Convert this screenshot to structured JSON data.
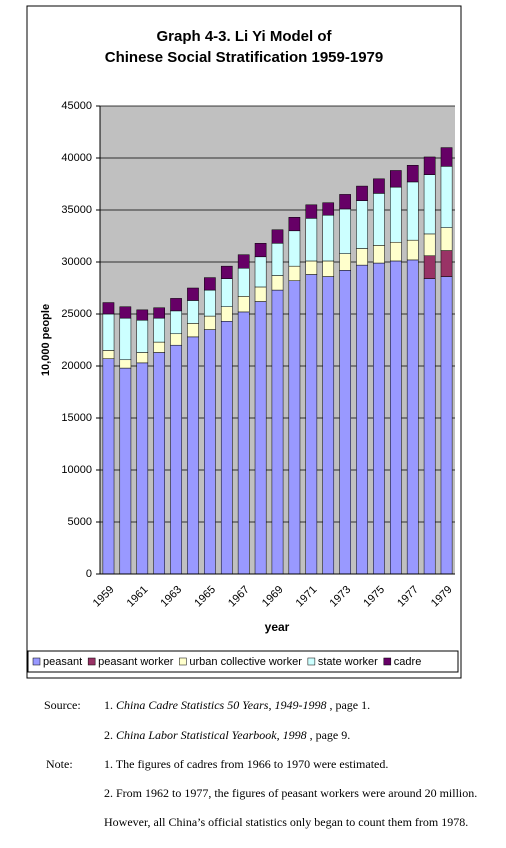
{
  "chart_data": {
    "type": "stacked_bar",
    "title": [
      "Graph 4-3. Li Yi Model of",
      "Chinese Social Stratification 1959-1979"
    ],
    "y_label": "10,000 people",
    "x_label": "year",
    "categories": [
      "1959",
      null,
      "1961",
      null,
      "1963",
      null,
      "1965",
      null,
      "1967",
      null,
      "1969",
      null,
      "1971",
      null,
      "1973",
      null,
      "1975",
      null,
      "1977",
      null,
      "1979"
    ],
    "ylim": [
      0,
      45000
    ],
    "yticks": [
      0,
      5000,
      10000,
      15000,
      20000,
      25000,
      30000,
      35000,
      40000,
      45000
    ],
    "grid": true,
    "legend": "bottom",
    "series": [
      {
        "name": "peasant",
        "color": "#9999ff",
        "values": [
          20700,
          19800,
          20300,
          21300,
          22000,
          22800,
          23500,
          24300,
          25200,
          26200,
          27300,
          28200,
          28800,
          28600,
          29200,
          29700,
          29900,
          30100,
          30200,
          28400,
          28600
        ]
      },
      {
        "name": "peasant worker",
        "color": "#993366",
        "values": [
          null,
          null,
          null,
          null,
          null,
          null,
          null,
          null,
          null,
          null,
          null,
          null,
          null,
          null,
          null,
          null,
          null,
          null,
          null,
          2200,
          2500
        ]
      },
      {
        "name": "urban collective worker",
        "color": "#ffffcc",
        "values": [
          800,
          800,
          1000,
          1000,
          1100,
          1300,
          1300,
          1400,
          1500,
          1400,
          1400,
          1400,
          1300,
          1500,
          1600,
          1600,
          1700,
          1800,
          1900,
          2100,
          2200
        ]
      },
      {
        "name": "state worker",
        "color": "#ccffff",
        "values": [
          3500,
          4000,
          3100,
          2300,
          2200,
          2200,
          2500,
          2700,
          2700,
          2900,
          3100,
          3400,
          4100,
          4400,
          4300,
          4600,
          5000,
          5300,
          5600,
          5700,
          5900
        ]
      },
      {
        "name": "cadre",
        "color": "#660066",
        "values": [
          1100,
          1100,
          1000,
          1000,
          1200,
          1200,
          1200,
          1200,
          1300,
          1300,
          1300,
          1300,
          1300,
          1200,
          1400,
          1400,
          1400,
          1600,
          1600,
          1700,
          1800
        ]
      }
    ]
  },
  "notes": {
    "source_label": "Source:",
    "sources": [
      {
        "number": "1.",
        "title": "China Cadre Statistics 50 Years, 1949-1998",
        "rest": " , page 1."
      },
      {
        "number": "2.",
        "title": "China Labor Statistical Yearbook, 1998",
        "rest": " , page 9."
      }
    ],
    "note_label": "Note:",
    "notes": [
      "1. The figures of cadres from 1966 to 1970 were estimated.",
      "2. From 1962 to 1977, the figures of peasant workers were around  20 million.",
      "However, all  China’s official statistics only began to count them from 1978."
    ]
  }
}
